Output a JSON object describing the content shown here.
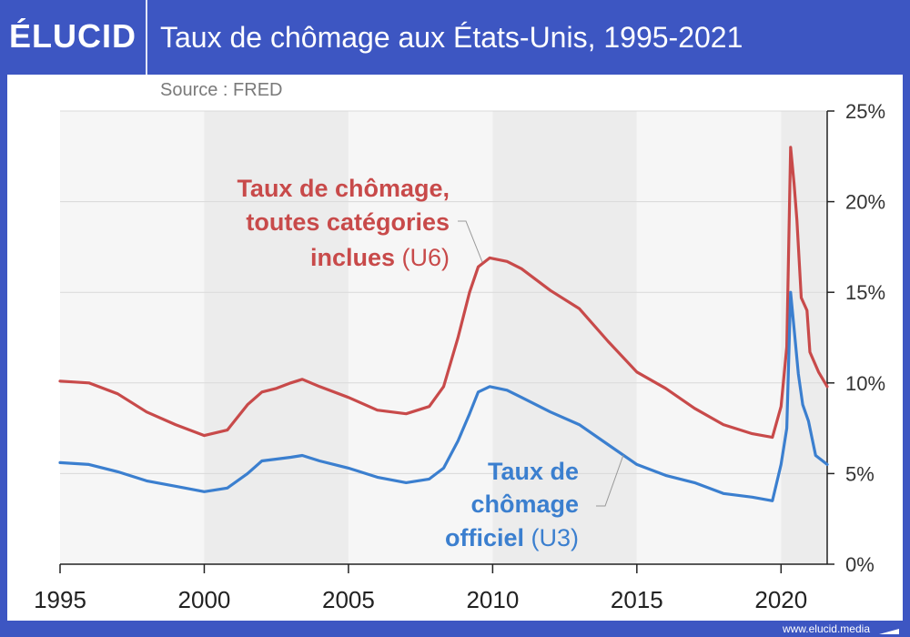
{
  "header": {
    "logo": "ÉLUCID",
    "title": "Taux de chômage aux États-Unis, 1995-2021"
  },
  "source": "Source : FRED",
  "footer": {
    "url": "www.elucid.media"
  },
  "colors": {
    "background": "#3d56c2",
    "u6": "#c84a4a",
    "u3": "#3b7fcf"
  },
  "chart_data": {
    "type": "line",
    "title": "Taux de chômage aux États-Unis, 1995-2021",
    "xlim": [
      1995,
      2021.6
    ],
    "ylim": [
      0,
      25
    ],
    "x_ticks": [
      1995,
      2000,
      2005,
      2010,
      2015,
      2020
    ],
    "y_ticks": [
      0,
      5,
      10,
      15,
      20,
      25
    ],
    "y_tick_labels": [
      "0%",
      "5%",
      "10%",
      "15%",
      "20%",
      "25%"
    ],
    "grid": true,
    "series": [
      {
        "key": "u6",
        "label_bold": [
          "Taux de chômage,",
          "toutes catégories",
          "inclues"
        ],
        "label_suffix": "(U6)",
        "color": "#c84a4a",
        "points": [
          [
            1995.0,
            10.1
          ],
          [
            1996.0,
            10.0
          ],
          [
            1997.0,
            9.4
          ],
          [
            1998.0,
            8.4
          ],
          [
            1999.0,
            7.7
          ],
          [
            2000.0,
            7.1
          ],
          [
            2000.8,
            7.4
          ],
          [
            2001.5,
            8.8
          ],
          [
            2002.0,
            9.5
          ],
          [
            2002.5,
            9.7
          ],
          [
            2003.0,
            10.0
          ],
          [
            2003.4,
            10.2
          ],
          [
            2004.0,
            9.8
          ],
          [
            2005.0,
            9.2
          ],
          [
            2006.0,
            8.5
          ],
          [
            2007.0,
            8.3
          ],
          [
            2007.8,
            8.7
          ],
          [
            2008.3,
            9.8
          ],
          [
            2008.8,
            12.5
          ],
          [
            2009.2,
            15.0
          ],
          [
            2009.5,
            16.4
          ],
          [
            2009.9,
            16.9
          ],
          [
            2010.5,
            16.7
          ],
          [
            2011.0,
            16.3
          ],
          [
            2012.0,
            15.1
          ],
          [
            2013.0,
            14.1
          ],
          [
            2014.0,
            12.3
          ],
          [
            2015.0,
            10.6
          ],
          [
            2016.0,
            9.7
          ],
          [
            2017.0,
            8.6
          ],
          [
            2018.0,
            7.7
          ],
          [
            2019.0,
            7.2
          ],
          [
            2019.7,
            7.0
          ],
          [
            2020.0,
            8.7
          ],
          [
            2020.2,
            12.0
          ],
          [
            2020.33,
            23.0
          ],
          [
            2020.45,
            21.0
          ],
          [
            2020.55,
            19.0
          ],
          [
            2020.7,
            14.7
          ],
          [
            2020.9,
            14.0
          ],
          [
            2021.0,
            11.7
          ],
          [
            2021.3,
            10.6
          ],
          [
            2021.6,
            9.8
          ]
        ]
      },
      {
        "key": "u3",
        "label_bold": [
          "Taux de",
          "chômage",
          "officiel"
        ],
        "label_suffix": "(U3)",
        "color": "#3b7fcf",
        "points": [
          [
            1995.0,
            5.6
          ],
          [
            1996.0,
            5.5
          ],
          [
            1997.0,
            5.1
          ],
          [
            1998.0,
            4.6
          ],
          [
            1999.0,
            4.3
          ],
          [
            2000.0,
            4.0
          ],
          [
            2000.8,
            4.2
          ],
          [
            2001.5,
            5.0
          ],
          [
            2002.0,
            5.7
          ],
          [
            2002.5,
            5.8
          ],
          [
            2003.0,
            5.9
          ],
          [
            2003.4,
            6.0
          ],
          [
            2004.0,
            5.7
          ],
          [
            2005.0,
            5.3
          ],
          [
            2006.0,
            4.8
          ],
          [
            2007.0,
            4.5
          ],
          [
            2007.8,
            4.7
          ],
          [
            2008.3,
            5.3
          ],
          [
            2008.8,
            6.8
          ],
          [
            2009.2,
            8.3
          ],
          [
            2009.5,
            9.5
          ],
          [
            2009.9,
            9.8
          ],
          [
            2010.5,
            9.6
          ],
          [
            2011.0,
            9.2
          ],
          [
            2012.0,
            8.4
          ],
          [
            2013.0,
            7.7
          ],
          [
            2014.0,
            6.6
          ],
          [
            2015.0,
            5.5
          ],
          [
            2016.0,
            4.9
          ],
          [
            2017.0,
            4.5
          ],
          [
            2018.0,
            3.9
          ],
          [
            2019.0,
            3.7
          ],
          [
            2019.7,
            3.5
          ],
          [
            2020.0,
            5.5
          ],
          [
            2020.2,
            7.5
          ],
          [
            2020.33,
            15.0
          ],
          [
            2020.45,
            13.0
          ],
          [
            2020.6,
            10.5
          ],
          [
            2020.75,
            8.8
          ],
          [
            2020.95,
            7.9
          ],
          [
            2021.2,
            6.0
          ],
          [
            2021.6,
            5.5
          ]
        ]
      }
    ]
  }
}
